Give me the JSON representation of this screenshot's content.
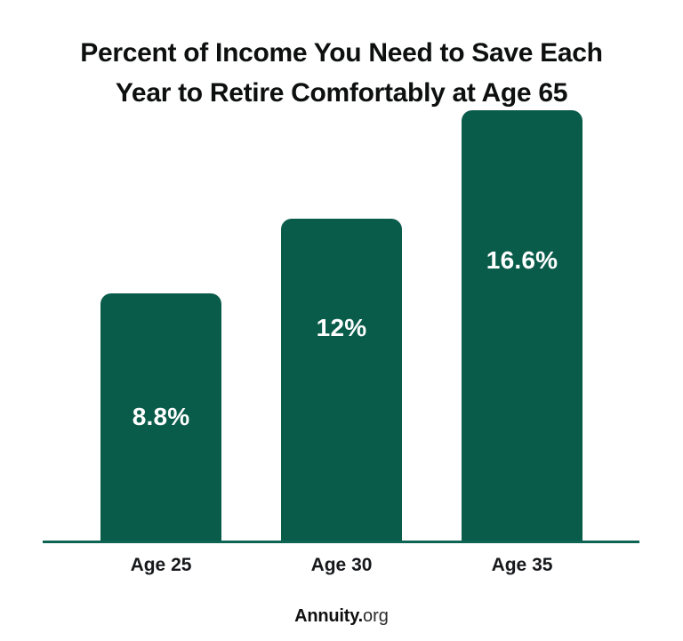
{
  "chart_data": {
    "type": "bar",
    "title": "Percent of Income You Need to Save Each Year to Retire Comfortably at Age 65",
    "title_lines": [
      "Percent of Income You Need to Save Each",
      "Year to Retire Comfortably at Age 65"
    ],
    "categories": [
      "Age 25",
      "Age 30",
      "Age 35"
    ],
    "values": [
      8.8,
      12,
      16.6
    ],
    "value_labels": [
      "8.8%",
      "12%",
      "16.6%"
    ],
    "xlabel": "",
    "ylabel": "",
    "ylim": [
      0,
      16.6
    ],
    "grid": false,
    "legend": "none",
    "value_labels_position": "inside-bar",
    "colors": {
      "bar": "#0A5C4A",
      "value_label": "#FFFFFF",
      "axis_line": "#0E6452",
      "title": "#0E0F0F",
      "category_label": "#16181B"
    }
  },
  "branding": {
    "bold": "Annuity.",
    "light": "org"
  }
}
